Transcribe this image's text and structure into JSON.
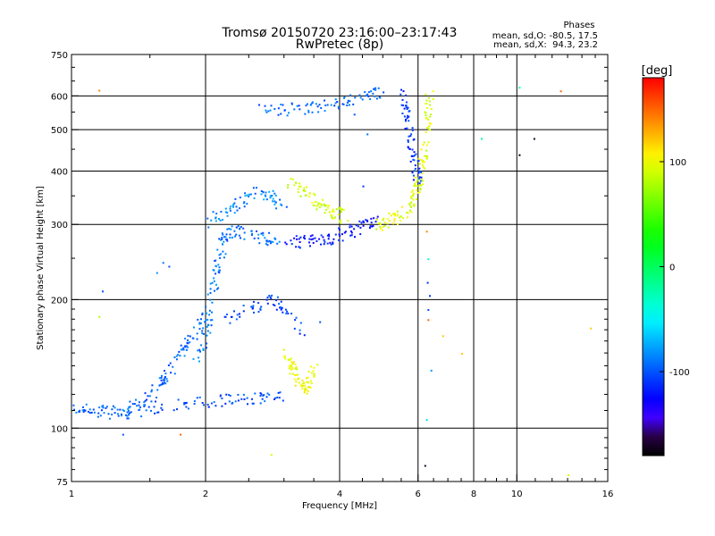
{
  "chart_data": {
    "type": "scatter",
    "title": "Tromsø 20150720 23:16:00–23:17:43",
    "subtitle": "RwPretec (8p)",
    "xlabel": "Frequency [MHz]",
    "ylabel": "Stationary phase Virtual Height [km]",
    "x_scale": "log",
    "y_scale": "log",
    "xlim": [
      1,
      16
    ],
    "ylim": [
      75,
      750
    ],
    "x_ticks": [
      1,
      2,
      4,
      6,
      8,
      10,
      16
    ],
    "x_tick_labels": [
      "1",
      "2",
      "4",
      "6",
      "8",
      "10",
      "16"
    ],
    "y_ticks": [
      75,
      100,
      200,
      300,
      400,
      500,
      600,
      750
    ],
    "y_tick_labels": [
      "75",
      "100",
      "200",
      "300",
      "400",
      "500",
      "600",
      "750"
    ],
    "grid": true,
    "stats": {
      "title": "Phases",
      "line_o": "mean, sd,O: -80.5, 17.5",
      "line_x": "mean, sd,X:  94.3, 23.2"
    },
    "colorbar": {
      "label": "[deg]",
      "min": -180,
      "max": 180,
      "ticks": [
        100,
        0,
        -100
      ],
      "tick_labels": [
        "100",
        "0",
        "-100"
      ],
      "colormap": "rainbow-black-to-red"
    },
    "traces": [
      {
        "name": "",
        "points": [
          [
            1.0,
            113
          ],
          [
            1.1,
            111
          ],
          [
            1.2,
            109
          ],
          [
            1.3,
            110
          ],
          [
            1.4,
            114
          ],
          [
            1.5,
            120
          ],
          [
            1.6,
            130
          ],
          [
            1.7,
            142
          ],
          [
            1.8,
            155
          ],
          [
            1.9,
            170
          ],
          [
            2.0,
            185
          ]
        ],
        "phase": -95
      },
      {
        "name": "",
        "points": [
          [
            1.3,
            108
          ],
          [
            1.5,
            112
          ],
          [
            1.8,
            115
          ],
          [
            2.1,
            116
          ],
          [
            2.4,
            117
          ],
          [
            2.7,
            118
          ],
          [
            2.95,
            120
          ]
        ],
        "phase": -100
      },
      {
        "name": "",
        "points": [
          [
            1.9,
            140
          ],
          [
            2.0,
            170
          ],
          [
            2.05,
            200
          ],
          [
            2.1,
            230
          ],
          [
            2.15,
            260
          ],
          [
            2.2,
            280
          ],
          [
            2.3,
            290
          ],
          [
            2.5,
            285
          ],
          [
            2.7,
            280
          ],
          [
            2.9,
            278
          ]
        ],
        "phase": -90
      },
      {
        "name": "",
        "points": [
          [
            2.0,
            305
          ],
          [
            2.2,
            320
          ],
          [
            2.4,
            340
          ],
          [
            2.6,
            360
          ],
          [
            2.8,
            350
          ],
          [
            3.0,
            330
          ]
        ],
        "phase": -85
      },
      {
        "name": "",
        "points": [
          [
            3.0,
            278
          ],
          [
            3.3,
            274
          ],
          [
            3.6,
            276
          ],
          [
            3.9,
            282
          ],
          [
            4.2,
            290
          ],
          [
            4.5,
            298
          ],
          [
            4.8,
            305
          ]
        ],
        "phase": -120
      },
      {
        "name": "",
        "points": [
          [
            4.8,
            300
          ],
          [
            5.1,
            305
          ],
          [
            5.4,
            315
          ],
          [
            5.7,
            330
          ],
          [
            5.9,
            350
          ],
          [
            6.0,
            380
          ],
          [
            6.1,
            420
          ],
          [
            6.2,
            480
          ],
          [
            6.3,
            550
          ],
          [
            6.35,
            610
          ]
        ],
        "phase": 95
      },
      {
        "name": "",
        "points": [
          [
            5.5,
            620
          ],
          [
            5.6,
            560
          ],
          [
            5.7,
            500
          ],
          [
            5.8,
            450
          ],
          [
            5.9,
            410
          ],
          [
            6.0,
            380
          ]
        ],
        "phase": -110
      },
      {
        "name": "",
        "points": [
          [
            3.1,
            380
          ],
          [
            3.3,
            360
          ],
          [
            3.5,
            340
          ],
          [
            3.7,
            330
          ],
          [
            3.9,
            320
          ],
          [
            4.1,
            310
          ]
        ],
        "phase": 90
      },
      {
        "name": "",
        "points": [
          [
            3.0,
            150
          ],
          [
            3.1,
            140
          ],
          [
            3.2,
            130
          ],
          [
            3.3,
            125
          ],
          [
            3.4,
            128
          ],
          [
            3.5,
            140
          ]
        ],
        "phase": 100
      },
      {
        "name": "",
        "points": [
          [
            2.6,
            560
          ],
          [
            3.0,
            560
          ],
          [
            3.4,
            565
          ],
          [
            3.8,
            575
          ],
          [
            4.2,
            590
          ],
          [
            4.6,
            605
          ],
          [
            5.0,
            615
          ]
        ],
        "phase": -95
      },
      {
        "name": "",
        "points": [
          [
            2.2,
            180
          ],
          [
            2.5,
            190
          ],
          [
            2.8,
            200
          ],
          [
            3.0,
            190
          ],
          [
            3.3,
            170
          ]
        ],
        "phase": -105
      }
    ],
    "isolated_points": [
      [
        1.15,
        620,
        140
      ],
      [
        1.75,
        97,
        150
      ],
      [
        1.3,
        97,
        -100
      ],
      [
        1.17,
        210,
        -100
      ],
      [
        1.15,
        183,
        80
      ],
      [
        2.8,
        87,
        90
      ],
      [
        6.2,
        82,
        -170
      ],
      [
        6.4,
        137,
        -80
      ],
      [
        6.25,
        105,
        -60
      ],
      [
        8.3,
        478,
        -20
      ],
      [
        10.1,
        438,
        -180
      ],
      [
        10.9,
        478,
        -170
      ],
      [
        10.1,
        630,
        -30
      ],
      [
        12.5,
        618,
        150
      ],
      [
        14.6,
        172,
        120
      ],
      [
        7.5,
        150,
        120
      ],
      [
        6.8,
        165,
        120
      ],
      [
        6.3,
        180,
        150
      ],
      [
        6.25,
        290,
        140
      ],
      [
        6.3,
        250,
        -40
      ],
      [
        6.28,
        220,
        -110
      ],
      [
        6.35,
        205,
        -110
      ],
      [
        6.3,
        190,
        -100
      ],
      [
        13.0,
        78,
        90
      ],
      [
        1.55,
        232,
        -80
      ],
      [
        1.6,
        245,
        -90
      ],
      [
        1.65,
        240,
        -100
      ],
      [
        2.0,
        155,
        -110
      ],
      [
        3.6,
        178,
        -100
      ],
      [
        4.5,
        370,
        -110
      ],
      [
        4.6,
        490,
        -90
      ],
      [
        4.3,
        545,
        -100
      ]
    ]
  }
}
